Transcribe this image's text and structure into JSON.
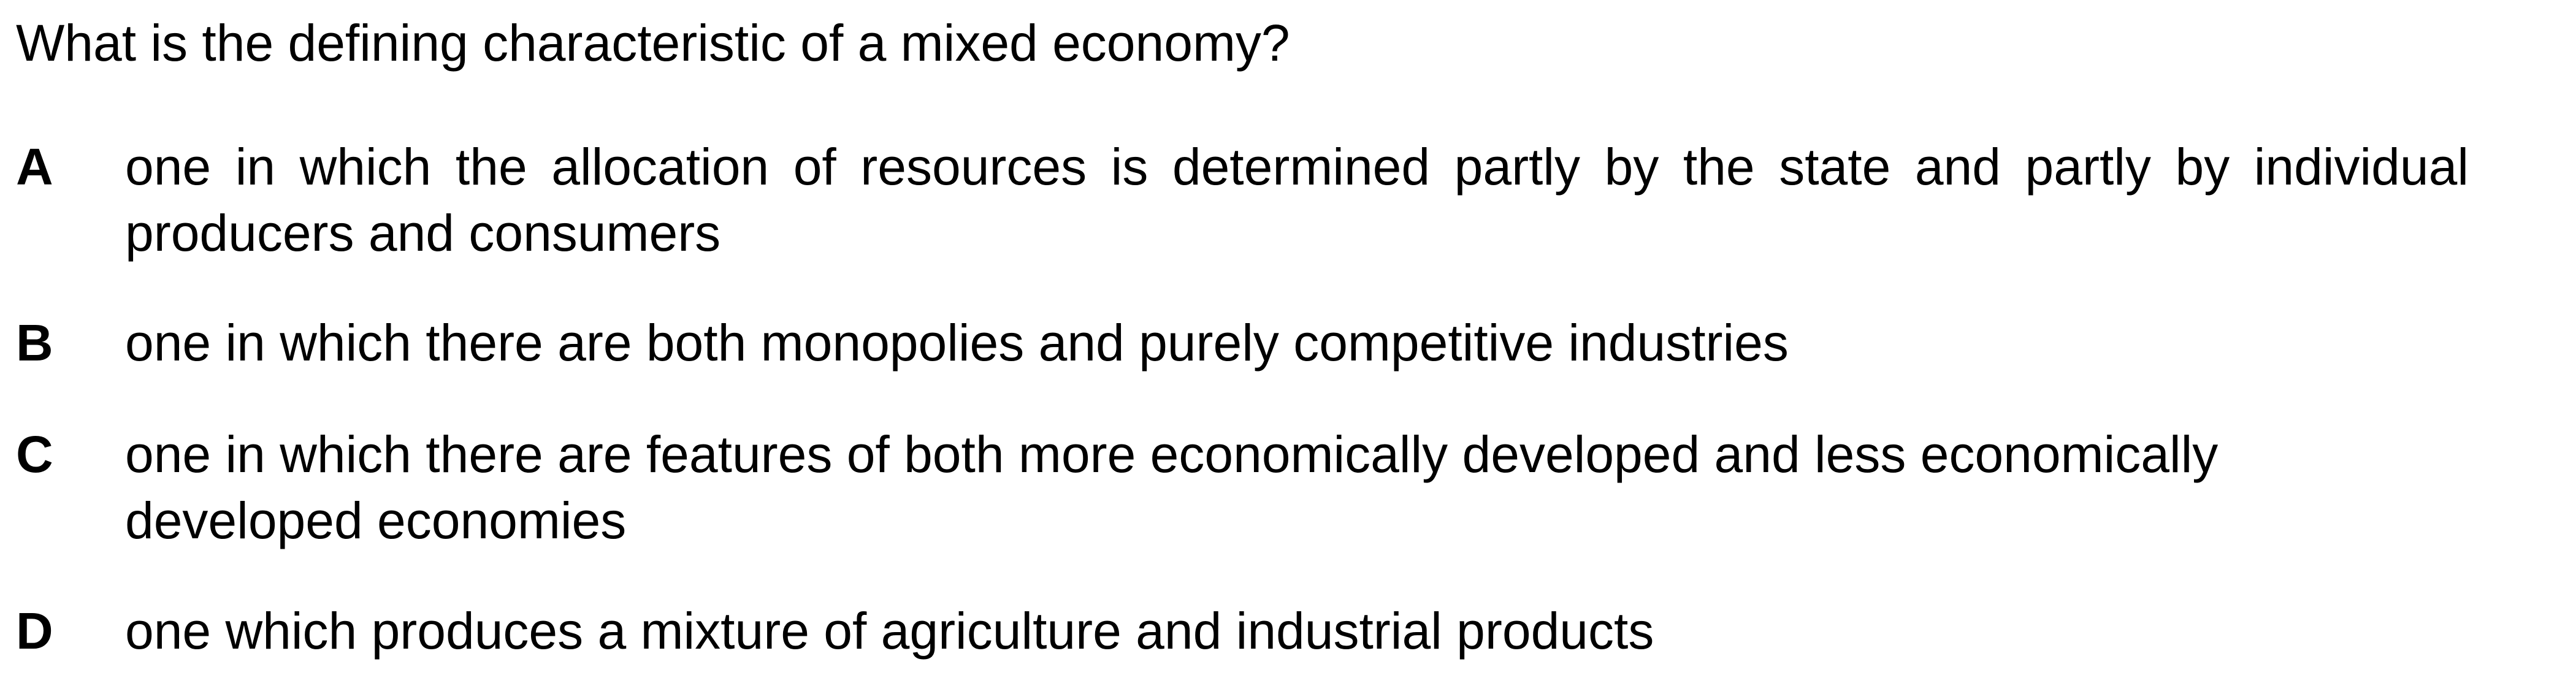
{
  "question": "What is the defining characteristic of a mixed economy?",
  "options": [
    {
      "letter": "A",
      "text": "one in which the allocation of resources is determined partly by the state and partly by individual producers and consumers"
    },
    {
      "letter": "B",
      "text": "one in which there are both monopolies and purely competitive industries"
    },
    {
      "letter": "C",
      "text": "one in which there are features of both more economically developed and less economically developed economies"
    },
    {
      "letter": "D",
      "text": "one which produces a mixture of agriculture and industrial products"
    }
  ]
}
